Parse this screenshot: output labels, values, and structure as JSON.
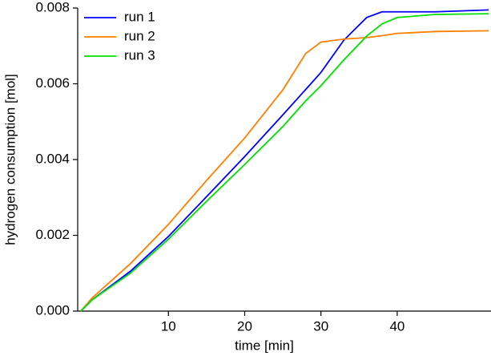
{
  "chart_data": {
    "type": "line",
    "xlabel": "time [min]",
    "ylabel": "hydrogen consumption [mol]",
    "x": [
      -1.5,
      0,
      5,
      10,
      15,
      20,
      25,
      28,
      30,
      33,
      36,
      38,
      40,
      45,
      52
    ],
    "series": [
      {
        "name": "run 1",
        "color": "#0000ff",
        "values": [
          0,
          0.0003,
          0.00105,
          0.00197,
          0.00302,
          0.00408,
          0.00518,
          0.00585,
          0.0063,
          0.00715,
          0.00775,
          0.0079,
          0.0079,
          0.0079,
          0.00795
        ]
      },
      {
        "name": "run 2",
        "color": "#ff8000",
        "values": [
          0,
          0.00035,
          0.00125,
          0.00229,
          0.00345,
          0.00457,
          0.00584,
          0.0068,
          0.0071,
          0.00718,
          0.00722,
          0.00727,
          0.00733,
          0.00738,
          0.0074
        ]
      },
      {
        "name": "run 3",
        "color": "#00e000",
        "values": [
          0,
          0.0003,
          0.001,
          0.0019,
          0.0029,
          0.00387,
          0.00487,
          0.00555,
          0.00595,
          0.00663,
          0.00726,
          0.00758,
          0.00775,
          0.00783,
          0.00785
        ]
      }
    ],
    "xlim": [
      -1.9,
      52.3
    ],
    "xticks": [
      10,
      20,
      30,
      40
    ],
    "ylim": [
      0,
      0.008
    ],
    "yticks": [
      {
        "value": 0,
        "label": "0.000"
      },
      {
        "value": 0.002,
        "label": "0.002"
      },
      {
        "value": 0.004,
        "label": "0.004"
      },
      {
        "value": 0.006,
        "label": "0.006"
      },
      {
        "value": 0.008,
        "label": "0.008"
      }
    ],
    "legend": "top-left"
  }
}
